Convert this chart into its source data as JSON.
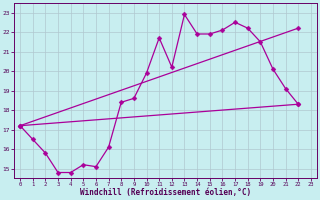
{
  "xlabel": "Windchill (Refroidissement éolien,°C)",
  "xlim": [
    -0.5,
    23.5
  ],
  "ylim": [
    14.5,
    23.5
  ],
  "yticks": [
    15,
    16,
    17,
    18,
    19,
    20,
    21,
    22,
    23
  ],
  "xticks": [
    0,
    1,
    2,
    3,
    4,
    5,
    6,
    7,
    8,
    9,
    10,
    11,
    12,
    13,
    14,
    15,
    16,
    17,
    18,
    19,
    20,
    21,
    22,
    23
  ],
  "bg_color": "#c8eef0",
  "grid_color": "#b0c8d0",
  "line_color": "#aa0099",
  "line1_x": [
    0,
    1,
    2,
    3,
    4,
    5,
    6,
    7,
    8,
    9,
    10,
    11,
    12,
    13,
    14,
    15,
    16,
    17,
    18,
    19,
    20,
    21,
    22
  ],
  "line1_y": [
    17.2,
    16.5,
    15.8,
    14.8,
    14.8,
    15.2,
    15.1,
    16.1,
    18.4,
    18.6,
    19.9,
    21.7,
    20.2,
    22.9,
    21.9,
    21.9,
    22.1,
    22.5,
    22.2,
    21.5,
    20.1,
    19.1,
    18.3
  ],
  "line2_x": [
    0,
    22
  ],
  "line2_y": [
    17.2,
    22.2
  ],
  "line3_x": [
    0,
    22
  ],
  "line3_y": [
    17.2,
    18.3
  ]
}
